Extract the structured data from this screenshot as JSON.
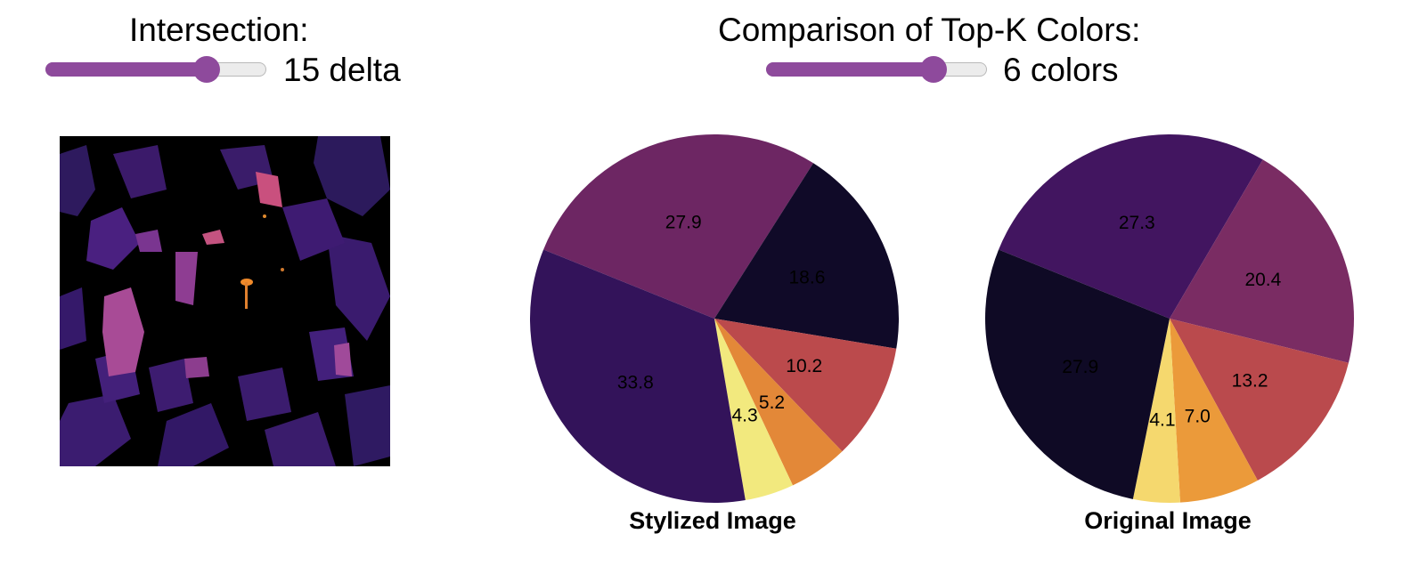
{
  "intersection": {
    "title": "Intersection:",
    "value_label": "15 delta",
    "slider_fraction": 0.73
  },
  "comparison": {
    "title": "Comparison of Top-K Colors:",
    "value_label": "6 colors",
    "slider_fraction": 0.76
  },
  "colors": {
    "accent": "#8e4a9c"
  },
  "chart_data": [
    {
      "type": "pie",
      "title": "Stylized Image",
      "start_angle_deg": 158,
      "slices": [
        {
          "value": 27.9,
          "label": "27.9",
          "color": "#6d2663"
        },
        {
          "value": 18.6,
          "label": "18.6",
          "color": "#100a28"
        },
        {
          "value": 10.2,
          "label": "10.2",
          "color": "#bb4a4c"
        },
        {
          "value": 5.2,
          "label": "5.2",
          "color": "#e38838"
        },
        {
          "value": 4.3,
          "label": "4.3",
          "color": "#f2e97e"
        },
        {
          "value": 33.8,
          "label": "33.8",
          "color": "#33135a"
        }
      ]
    },
    {
      "type": "pie",
      "title": "Original Image",
      "start_angle_deg": 158,
      "slices": [
        {
          "value": 27.3,
          "label": "27.3",
          "color": "#421560"
        },
        {
          "value": 20.4,
          "label": "20.4",
          "color": "#7a2c63"
        },
        {
          "value": 13.2,
          "label": "13.2",
          "color": "#ba4a4d"
        },
        {
          "value": 7.0,
          "label": "7.0",
          "color": "#eb9a3a"
        },
        {
          "value": 4.1,
          "label": "4.1",
          "color": "#f5d86e"
        },
        {
          "value": 27.9,
          "label": "27.9",
          "color": "#0f0a25"
        }
      ]
    }
  ]
}
